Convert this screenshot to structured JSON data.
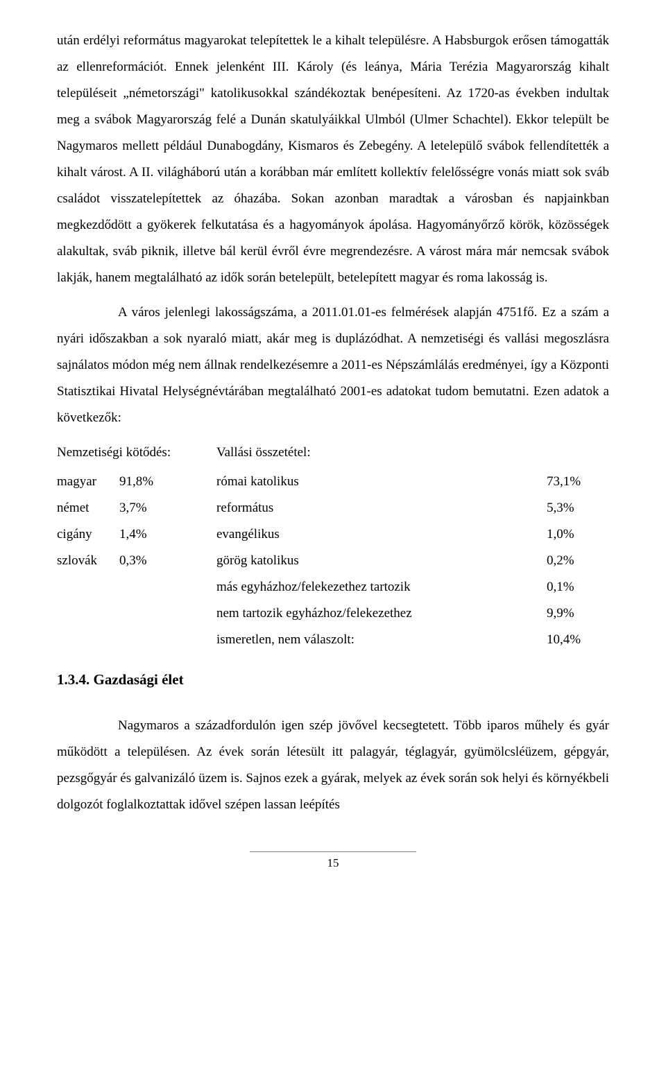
{
  "para1": "után erdélyi református magyarokat telepítettek le a kihalt településre. A Habsburgok erősen támogatták az ellenreformációt. Ennek jelenként III. Károly (és leánya, Mária Terézia Magyarország kihalt településeit „németországi\" katolikusokkal szándékoztak benépesíteni. Az 1720-as években indultak meg a svábok Magyarország felé a Dunán skatulyáikkal Ulmból (Ulmer Schachtel). Ekkor települt be Nagymaros mellett például Dunabogdány, Kismaros és Zebegény. A letelepülő svábok fellendítették a kihalt várost. A II. világháború után a korábban már említett kollektív felelősségre vonás miatt sok sváb családot visszatelepítettek az óhazába. Sokan azonban maradtak a városban és napjainkban megkezdődött a gyökerek felkutatása és a hagyományok ápolása. Hagyományőrző körök, közösségek alakultak, sváb piknik, illetve bál kerül évről évre megrendezésre. A várost mára már nemcsak svábok lakják, hanem megtalálható az idők során betelepült, betelepített magyar és roma lakosság is.",
  "para2": "A város jelenlegi lakosságszáma, a 2011.01.01-es felmérések alapján 4751fő. Ez a szám a nyári időszakban a sok nyaraló miatt, akár meg is duplázódhat. A nemzetiségi és vallási megoszlásra sajnálatos módon még nem állnak rendelkezésemre a 2011-es Népszámlálás eredményei, így a Központi Statisztikai Hivatal Helységnévtárában megtalálható 2001-es adatokat tudom bemutatni. Ezen adatok a következők:",
  "ethnicity": {
    "heading": "Nemzetiségi kötődés:",
    "rows": [
      {
        "label": "magyar",
        "value": "91,8%"
      },
      {
        "label": "német",
        "value": "3,7%"
      },
      {
        "label": "cigány",
        "value": "1,4%"
      },
      {
        "label": "szlovák",
        "value": "0,3%"
      }
    ]
  },
  "religion": {
    "heading": "Vallási összetétel:",
    "rows": [
      {
        "label": "római katolikus",
        "value": "73,1%"
      },
      {
        "label": "református",
        "value": "5,3%"
      },
      {
        "label": "evangélikus",
        "value": "1,0%"
      },
      {
        "label": "görög katolikus",
        "value": "0,2%"
      },
      {
        "label": "más egyházhoz/felekezethez tartozik",
        "value": "0,1%"
      },
      {
        "label": "nem tartozik egyházhoz/felekezethez",
        "value": "9,9%"
      },
      {
        "label": "ismeretlen, nem válaszolt:",
        "value": "10,4%"
      }
    ]
  },
  "section_heading": "1.3.4. Gazdasági élet",
  "para3": "Nagymaros a századfordulón igen szép jövővel kecsegtetett. Több iparos műhely és gyár működött a településen. Az évek során létesült itt palagyár, téglagyár, gyümölcsléüzem, gépgyár, pezsgőgyár és galvanizáló üzem is. Sajnos ezek a gyárak, melyek az évek során sok helyi és környékbeli dolgozót foglalkoztattak idővel szépen lassan leépítés",
  "page_number": "15"
}
